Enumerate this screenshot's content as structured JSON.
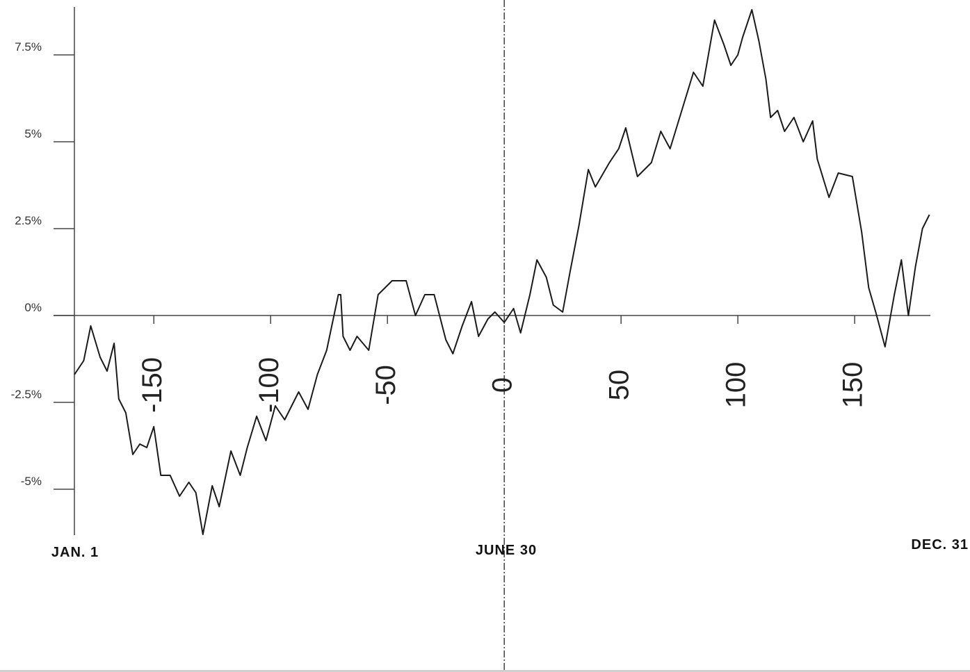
{
  "chart_data": {
    "type": "line",
    "color": "#1a1a1a",
    "x": [
      -184,
      -180,
      -177,
      -173,
      -170,
      -167,
      -165,
      -162,
      -159,
      -156,
      -153,
      -150,
      -147,
      -143,
      -139,
      -135,
      -132,
      -129,
      -125,
      -122,
      -117,
      -113,
      -110,
      -106,
      -102,
      -98,
      -94,
      -88,
      -84,
      -80,
      -76,
      -71,
      -70,
      -69,
      -66,
      -63,
      -58,
      -54,
      -48,
      -42,
      -38,
      -34,
      -30,
      -25,
      -22,
      -18,
      -14,
      -11,
      -7,
      -4,
      0,
      4,
      7,
      11,
      14,
      18,
      21,
      25,
      28,
      32,
      36,
      39,
      45,
      49,
      52,
      57,
      63,
      67,
      71,
      76,
      81,
      85,
      90,
      94,
      97,
      100,
      102,
      106,
      109,
      112,
      114,
      117,
      120,
      124,
      128,
      132,
      134,
      139,
      143,
      149,
      153,
      156,
      159,
      163,
      167,
      170,
      173,
      176,
      179,
      182
    ],
    "values": [
      -1.7,
      -1.3,
      -0.3,
      -1.2,
      -1.6,
      -0.8,
      -2.4,
      -2.8,
      -4.0,
      -3.7,
      -3.8,
      -3.2,
      -4.6,
      -4.6,
      -5.2,
      -4.8,
      -5.1,
      -6.3,
      -4.9,
      -5.5,
      -3.9,
      -4.6,
      -3.8,
      -2.9,
      -3.6,
      -2.6,
      -3.0,
      -2.2,
      -2.7,
      -1.7,
      -1.0,
      0.6,
      0.6,
      -0.6,
      -1.0,
      -0.6,
      -1.0,
      0.6,
      1.0,
      1.0,
      0.0,
      0.6,
      0.6,
      -0.7,
      -1.1,
      -0.3,
      0.4,
      -0.6,
      -0.1,
      0.1,
      -0.2,
      0.2,
      -0.5,
      0.6,
      1.6,
      1.1,
      0.3,
      0.1,
      1.2,
      2.6,
      4.2,
      3.7,
      4.4,
      4.8,
      5.4,
      4.0,
      4.4,
      5.3,
      4.8,
      5.9,
      7.0,
      6.6,
      8.5,
      7.8,
      7.2,
      7.5,
      8.0,
      8.8,
      7.9,
      6.8,
      5.7,
      5.9,
      5.3,
      5.7,
      5.0,
      5.6,
      4.5,
      3.4,
      4.1,
      4.0,
      2.4,
      0.8,
      0.1,
      -0.9,
      0.6,
      1.6,
      0.0,
      1.4,
      2.5,
      2.9
    ],
    "xlim": [
      -184,
      183
    ],
    "xticks": [
      -150,
      -100,
      -50,
      0,
      50,
      100,
      150
    ],
    "ylim": [
      -6.32,
      8.88
    ],
    "yticks": [
      {
        "value": 7.5,
        "label": "7.5%"
      },
      {
        "value": 5,
        "label": "5%"
      },
      {
        "value": 2.5,
        "label": "2.5%"
      },
      {
        "value": 0,
        "label": "0%"
      },
      {
        "value": -2.5,
        "label": "-2.5%"
      },
      {
        "value": -5,
        "label": "-5%"
      }
    ],
    "annotations": [
      "JAN. 1",
      "JUNE 30",
      "DEC. 31"
    ]
  }
}
